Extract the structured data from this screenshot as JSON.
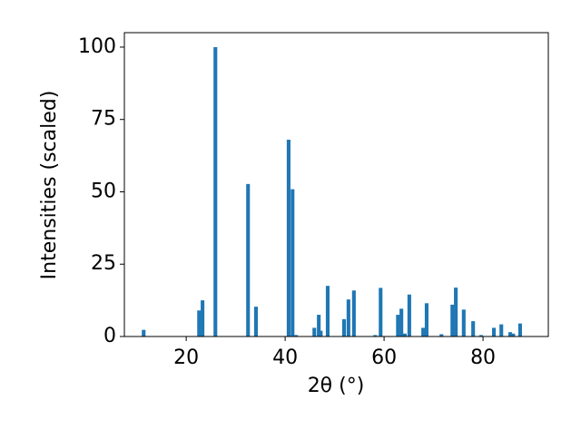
{
  "chart_data": {
    "type": "bar",
    "x_label": "2θ (°)",
    "y_label": "Intensities (scaled)",
    "color": "#1f77b4",
    "x": [
      11.4,
      22.6,
      23.3,
      25.9,
      32.5,
      34.1,
      40.7,
      41.5,
      42.2,
      45.9,
      46.8,
      47.2,
      48.6,
      51.9,
      52.8,
      53.9,
      58.2,
      59.3,
      62.8,
      63.5,
      64.2,
      65.1,
      67.9,
      68.6,
      71.6,
      73.8,
      74.5,
      76.1,
      78.0,
      79.6,
      82.2,
      83.7,
      85.5,
      86.1,
      87.5
    ],
    "values": [
      2.3,
      9,
      12.5,
      100,
      52.7,
      10.3,
      68,
      50.9,
      0.5,
      3,
      7.5,
      2,
      17.5,
      6,
      12.8,
      15.9,
      0.5,
      16.8,
      7.5,
      9.6,
      1,
      14.5,
      3,
      11.5,
      0.8,
      11,
      16.9,
      9.3,
      5.3,
      0.5,
      3,
      4.2,
      1.5,
      1,
      4.5
    ],
    "xlim": [
      7.5,
      93.2
    ],
    "ylim": [
      0,
      105
    ],
    "xticks": [
      20,
      40,
      60,
      80
    ],
    "yticks": [
      0,
      25,
      50,
      75,
      100
    ]
  }
}
